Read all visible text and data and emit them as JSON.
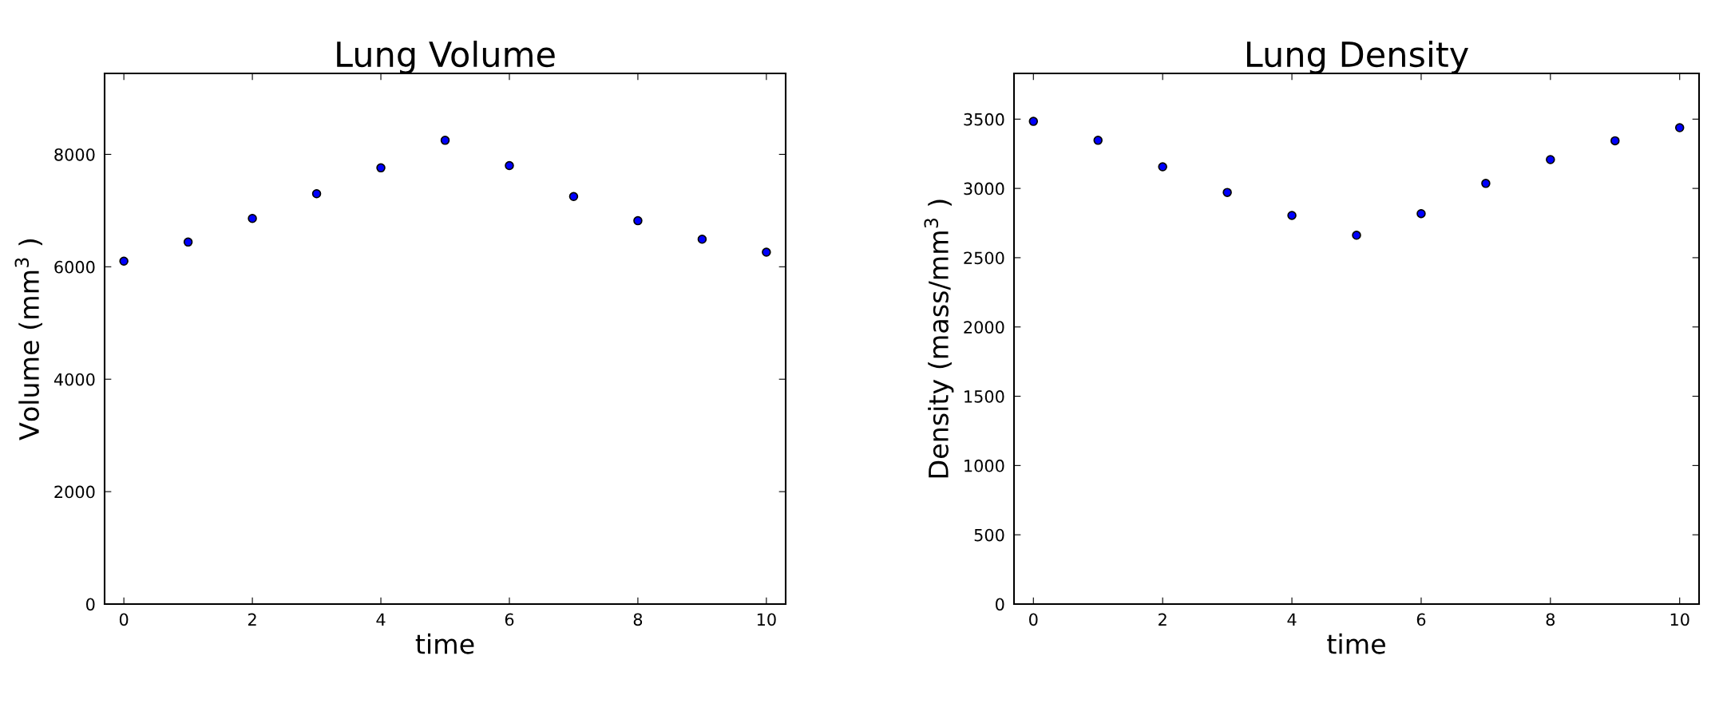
{
  "chart_data": [
    {
      "type": "scatter",
      "title": "Lung Volume",
      "xlabel": "time",
      "ylabel": "Volume (mm$^{3}$ )",
      "x": [
        0,
        1,
        2,
        3,
        4,
        5,
        6,
        7,
        8,
        9,
        10
      ],
      "series": [
        {
          "color": "#0000ff",
          "values": [
            6100,
            6440,
            6860,
            7300,
            7760,
            8250,
            7800,
            7250,
            6820,
            6490,
            6260
          ]
        }
      ],
      "xlim": [
        -0.3,
        10.3
      ],
      "xticks": [
        0,
        2,
        4,
        6,
        8,
        10
      ],
      "ylim": [
        0,
        9440
      ],
      "yticks": [
        0,
        2000,
        4000,
        6000,
        8000
      ],
      "marker": "circle",
      "grid": false
    },
    {
      "type": "scatter",
      "title": "Lung Density",
      "xlabel": "time",
      "ylabel": "Density (mass/mm$^{3}$ )",
      "x": [
        0,
        1,
        2,
        3,
        4,
        5,
        6,
        7,
        8,
        9,
        10
      ],
      "series": [
        {
          "color": "#0000ff",
          "values": [
            3484,
            3347,
            3156,
            2971,
            2805,
            2662,
            2818,
            3036,
            3208,
            3344,
            3438
          ]
        }
      ],
      "xlim": [
        -0.3,
        10.3
      ],
      "xticks": [
        0,
        2,
        4,
        6,
        8,
        10
      ],
      "ylim": [
        0,
        3830
      ],
      "yticks": [
        0,
        500,
        1000,
        1500,
        2000,
        2500,
        3000,
        3500
      ],
      "marker": "circle",
      "grid": false
    }
  ]
}
